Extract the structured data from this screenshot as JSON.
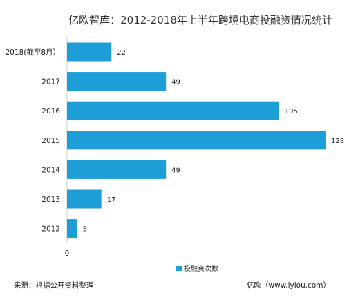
{
  "chart_data": {
    "type": "bar",
    "orientation": "horizontal",
    "title": "亿欧智库：2012-2018年上半年跨境电商投融资情况统计",
    "categories": [
      "2018(截至8月）",
      "2017",
      "2016",
      "2015",
      "2014",
      "2013",
      "2012"
    ],
    "series": [
      {
        "name": "投融资次数",
        "values": [
          22,
          49,
          105,
          128,
          49,
          17,
          5
        ]
      }
    ],
    "xlim": [
      0,
      128
    ],
    "x_tick_labels": [
      "0"
    ],
    "grid": false,
    "legend": "bottom",
    "bar_color": "#1d9ed6"
  },
  "footer": {
    "source": "来源：根据公开资料整理",
    "brand": "亿欧（www.iyiou.com）"
  }
}
